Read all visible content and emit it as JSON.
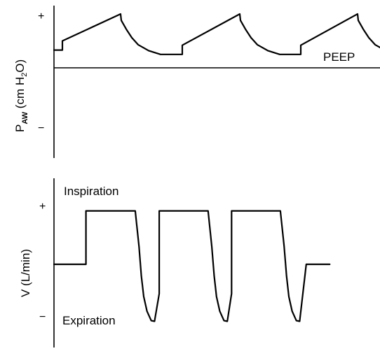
{
  "chart_data": [
    {
      "type": "line",
      "title": "",
      "ylabel": {
        "main": "P",
        "sub": "AW",
        "unit_prefix": " (cm H",
        "unit_sub": "2",
        "unit_suffix": "O)"
      },
      "y_ticks": [
        {
          "label": "+",
          "value": 1
        },
        {
          "label": "−",
          "value": -1
        }
      ],
      "ylim": [
        -1.3,
        1.3
      ],
      "reference_line": {
        "value": 0
      },
      "annotations": [
        {
          "text": "PEEP",
          "value": 0.25
        }
      ],
      "series": [
        {
          "x": [
            0,
            12,
            12,
            95,
            96,
            103,
            111,
            120,
            135,
            152,
            183,
            183,
            265,
            266,
            273,
            281,
            290,
            305,
            322,
            352,
            352,
            433,
            434,
            441,
            449,
            458,
            473,
            490,
            525
          ],
          "y": [
            0.33,
            0.33,
            0.5,
            1.0,
            0.88,
            0.72,
            0.56,
            0.43,
            0.32,
            0.25,
            0.25,
            0.42,
            1.0,
            0.88,
            0.72,
            0.56,
            0.43,
            0.32,
            0.25,
            0.25,
            0.42,
            1.0,
            0.88,
            0.72,
            0.56,
            0.43,
            0.32,
            0.25,
            0.25
          ]
        }
      ]
    },
    {
      "type": "line",
      "title": "",
      "ylabel": {
        "main": "V (L/min)"
      },
      "y_ticks": [
        {
          "label": "+",
          "value": 1
        },
        {
          "label": "−",
          "value": -1
        }
      ],
      "ylim": [
        -1.3,
        1.3
      ],
      "annotations": [
        {
          "text": "Inspiration",
          "value": 1.2
        },
        {
          "text": "Expiration",
          "value": -1.0
        }
      ],
      "series": [
        {
          "x": [
            0,
            68,
            68,
            173,
            181,
            186,
            191,
            198,
            207,
            214,
            224,
            224,
            328,
            336,
            341,
            346,
            353,
            362,
            369,
            378,
            378,
            482,
            490,
            495,
            500,
            507,
            516,
            523,
            537,
            587
          ],
          "y": [
            0,
            0,
            0.91,
            0.91,
            0.3,
            -0.2,
            -0.55,
            -0.8,
            -0.96,
            -0.97,
            -0.5,
            0.91,
            0.91,
            0.3,
            -0.2,
            -0.55,
            -0.8,
            -0.96,
            -0.97,
            -0.5,
            0.91,
            0.91,
            0.3,
            -0.2,
            -0.55,
            -0.8,
            -0.96,
            -0.97,
            0,
            0
          ]
        }
      ]
    }
  ]
}
